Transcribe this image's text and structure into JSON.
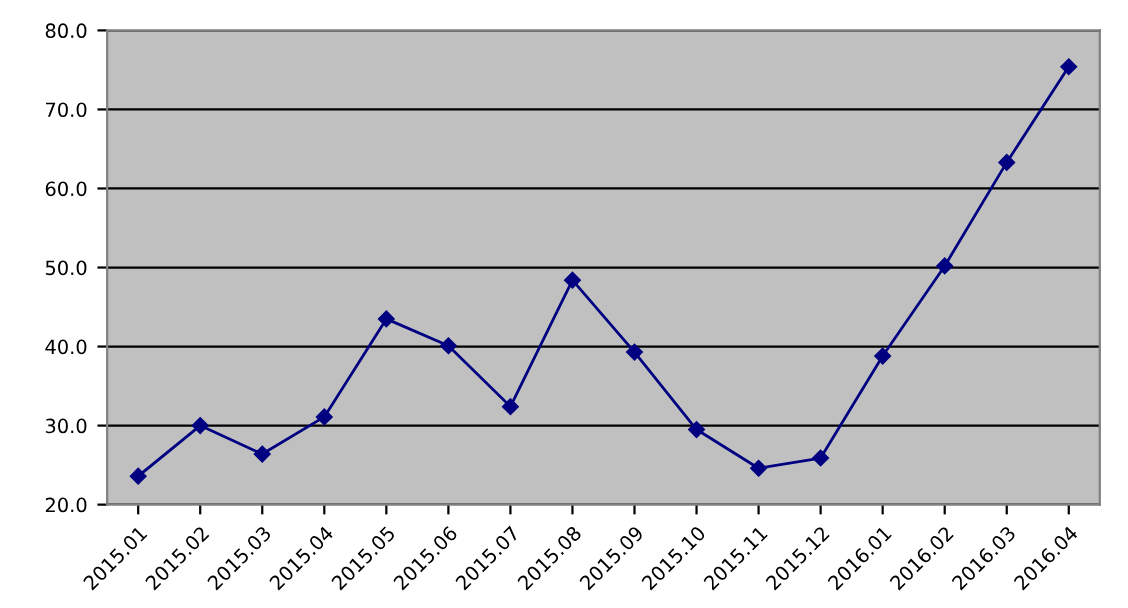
{
  "chart_data": {
    "type": "line",
    "categories": [
      "2015.01",
      "2015.02",
      "2015.03",
      "2015.04",
      "2015.05",
      "2015.06",
      "2015.07",
      "2015.08",
      "2015.09",
      "2015.10",
      "2015.11",
      "2015.12",
      "2016.01",
      "2016.02",
      "2016.03",
      "2016.04"
    ],
    "series": [
      {
        "color": "#000080",
        "values": [
          23.6,
          30.0,
          26.4,
          31.1,
          43.5,
          40.1,
          32.4,
          48.4,
          39.3,
          29.5,
          24.6,
          25.9,
          38.8,
          50.2,
          63.3,
          75.4
        ]
      }
    ],
    "ylim": [
      20,
      80
    ],
    "yticks": [
      {
        "value": 20,
        "label": "20.0"
      },
      {
        "value": 30,
        "label": "30.0"
      },
      {
        "value": 40,
        "label": "40.0"
      },
      {
        "value": 50,
        "label": "50.0"
      },
      {
        "value": 60,
        "label": "60.0"
      },
      {
        "value": 70,
        "label": "70.0"
      },
      {
        "value": 80,
        "label": "80.0"
      }
    ],
    "grid": "y",
    "marker": "diamond",
    "line_style": "solid",
    "legend": false
  }
}
